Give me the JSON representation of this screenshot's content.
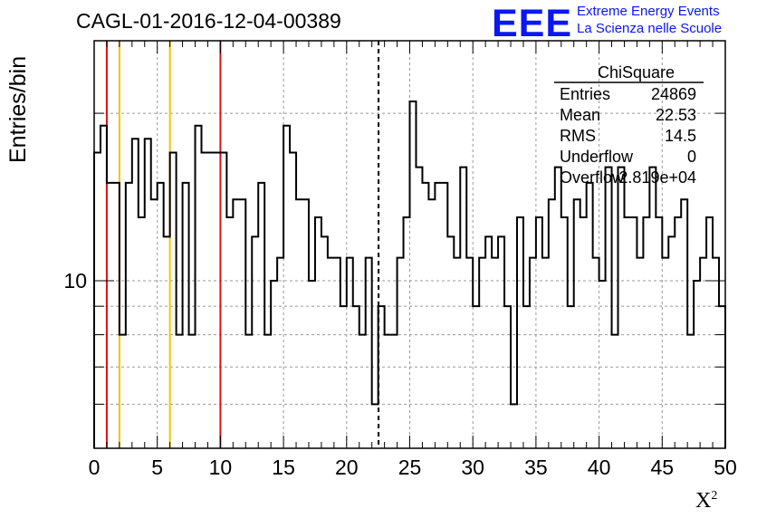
{
  "header": {
    "title": "CAGL-01-2016-12-04-00389",
    "logo_text": "EEE",
    "logo_line1": "Extreme Energy Events",
    "logo_line2": "La Scienza nelle Scuole"
  },
  "colors": {
    "logo": "#0a17f5",
    "red_line": "#dd1111",
    "yellow_line": "#f5c400",
    "grid": "#999999"
  },
  "chart_data": {
    "type": "histogram",
    "title": "CAGL-01-2016-12-04-00389",
    "xlabel": "X",
    "xlabel_sup": "2",
    "ylabel": "Entries/bin",
    "xlim": [
      0,
      50
    ],
    "ylim": [
      5,
      27
    ],
    "yscale": "log",
    "grid": true,
    "x_ticks": [
      "0",
      "5",
      "10",
      "15",
      "20",
      "25",
      "30",
      "35",
      "40",
      "45",
      "50"
    ],
    "y_ticks": [
      "10"
    ],
    "bin_width": 0.5,
    "values": [
      17,
      19,
      15,
      15,
      8,
      15,
      18,
      13,
      18,
      14,
      15,
      12,
      17,
      8,
      15,
      8,
      19,
      17,
      17,
      17,
      17,
      13,
      14,
      14,
      8,
      12,
      15,
      8,
      10,
      11,
      19,
      17,
      14,
      14,
      10,
      13,
      12,
      11,
      11,
      9,
      11,
      9,
      8,
      11,
      6,
      9,
      8,
      8,
      11,
      13,
      21,
      16,
      15,
      14,
      15,
      15,
      12,
      11,
      16,
      11,
      9,
      11,
      12,
      11,
      12,
      9,
      6,
      13,
      9,
      11,
      13,
      11,
      14,
      16,
      13,
      9,
      14,
      13,
      15,
      11,
      10,
      16,
      8,
      16,
      13,
      13,
      11,
      13,
      16,
      13,
      11,
      12,
      13,
      14,
      8,
      10,
      11,
      13,
      11,
      9
    ],
    "vertical_lines": [
      {
        "x": 1,
        "color": "red",
        "style": "solid"
      },
      {
        "x": 2,
        "color": "yellow",
        "style": "solid"
      },
      {
        "x": 6,
        "color": "yellow",
        "style": "solid"
      },
      {
        "x": 10,
        "color": "red",
        "style": "solid"
      },
      {
        "x": 22.53,
        "color": "black",
        "style": "dashed"
      }
    ],
    "stats_box": {
      "name": "ChiSquare",
      "rows": [
        {
          "label": "Entries",
          "value": "24869"
        },
        {
          "label": "Mean",
          "value": "22.53"
        },
        {
          "label": "RMS",
          "value": "14.5"
        },
        {
          "label": "Underflow",
          "value": "0"
        },
        {
          "label": "Overflow",
          "value": "2.819e+04"
        }
      ]
    }
  }
}
